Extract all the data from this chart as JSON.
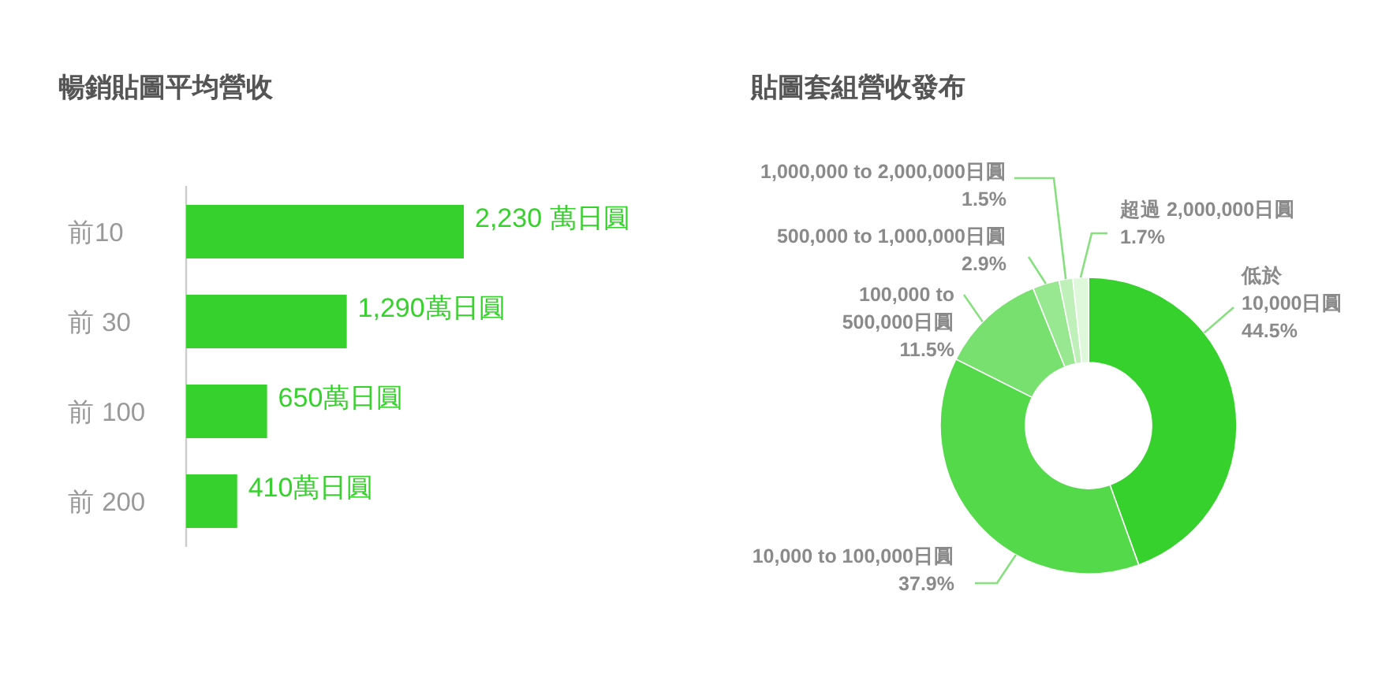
{
  "chart_data": [
    {
      "type": "bar",
      "orientation": "horizontal",
      "title": "暢銷貼圖平均營收",
      "categories": [
        "前10",
        "前 30",
        "前 100",
        "前 200"
      ],
      "values": [
        2230,
        1290,
        650,
        410
      ],
      "color": "#36d12c",
      "value_labels": [
        "2,230 萬日圓",
        "1,290萬日圓",
        "650萬日圓",
        "410萬日圓"
      ]
    },
    {
      "type": "donut",
      "title": "貼圖套組營收發布",
      "categories": [
        "低於 10,000日圓",
        "10,000 to 100,000日圓",
        "100,000 to 500,000日圓",
        "500,000 to 1,000,000日圓",
        "1,000,000 to 2,000,000日圓",
        "超過 2,000,000日圓"
      ],
      "values": [
        44.5,
        37.9,
        11.5,
        2.9,
        1.5,
        1.7
      ],
      "colors": [
        "#36d12c",
        "#53d94a",
        "#77e06f",
        "#98e791",
        "#bff0ba",
        "#dff8dc"
      ],
      "value_labels": [
        "44.5%",
        "37.9%",
        "11.5%",
        "2.9%",
        "1.5%",
        "1.7%"
      ]
    }
  ]
}
